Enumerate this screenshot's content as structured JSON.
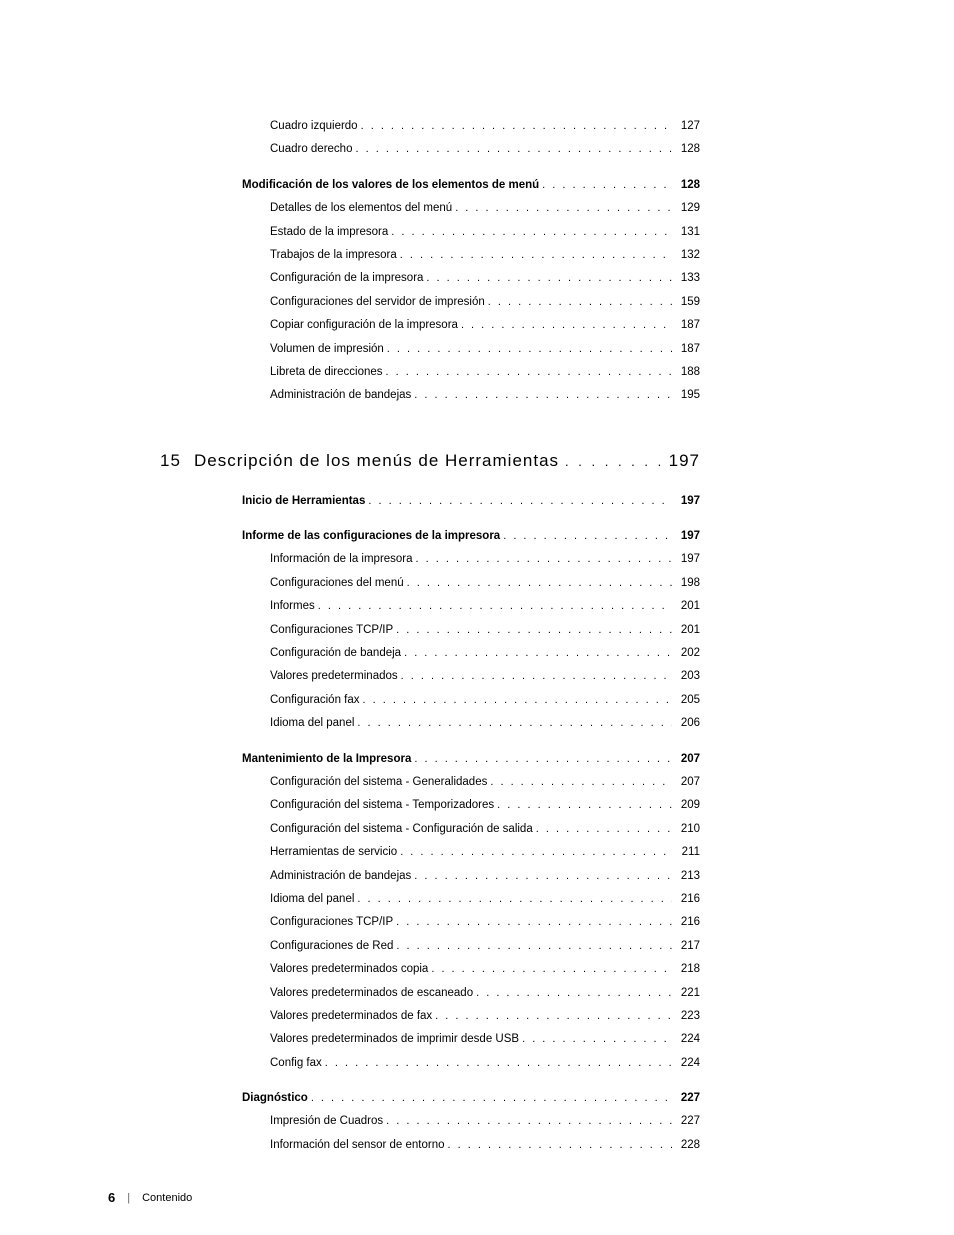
{
  "leader_dots": ".  .  .  .  .  .  .  .  .  .  .  .  .  .  .  .  .  .  .  .  .  .  .  .  .  .  .  .  .  .  .  .  .  .  .  .  .  .  .  .  .  .  .  .  .  .  .  .  .  .  .  .  .  .  .  .  .  .  .  .",
  "chapter_leader": ".  .  .  .  .  .  .  .  .  .  .  .  .  .  .  .  .  .  .  .  .  .  .  .  .  .  .  .  .  .",
  "chapter": {
    "num": "15",
    "title": "Descripción de los menús de Herramientas",
    "page": "197"
  },
  "toc": [
    {
      "label": "Cuadro izquierdo",
      "page": "127",
      "indent": 2,
      "bold": false
    },
    {
      "label": "Cuadro derecho",
      "page": "128",
      "indent": 2,
      "bold": false
    },
    {
      "gap": true
    },
    {
      "label": "Modificación de los valores de los elementos de menú",
      "page": "128",
      "indent": 1,
      "bold": true
    },
    {
      "label": "Detalles de los elementos del menú",
      "page": "129",
      "indent": 2,
      "bold": false
    },
    {
      "label": "Estado de la impresora",
      "page": "131",
      "indent": 2,
      "bold": false
    },
    {
      "label": "Trabajos de la impresora",
      "page": "132",
      "indent": 2,
      "bold": false
    },
    {
      "label": "Configuración de la impresora",
      "page": "133",
      "indent": 2,
      "bold": false
    },
    {
      "label": "Configuraciones del servidor de impresión",
      "page": "159",
      "indent": 2,
      "bold": false
    },
    {
      "label": "Copiar configuración de la impresora",
      "page": "187",
      "indent": 2,
      "bold": false
    },
    {
      "label": "Volumen de impresión",
      "page": "187",
      "indent": 2,
      "bold": false
    },
    {
      "label": "Libreta de direcciones",
      "page": "188",
      "indent": 2,
      "bold": false
    },
    {
      "label": "Administración de bandejas",
      "page": "195",
      "indent": 2,
      "bold": false
    },
    {
      "biggap": true
    },
    {
      "chapter": true
    },
    {
      "gap": true
    },
    {
      "label": "Inicio de Herramientas",
      "page": "197",
      "indent": 1,
      "bold": true
    },
    {
      "gap": true
    },
    {
      "label": "Informe de las configuraciones de la impresora",
      "page": "197",
      "indent": 1,
      "bold": true
    },
    {
      "label": "Información de la impresora",
      "page": "197",
      "indent": 2,
      "bold": false
    },
    {
      "label": "Configuraciones del menú",
      "page": "198",
      "indent": 2,
      "bold": false
    },
    {
      "label": "Informes",
      "page": "201",
      "indent": 2,
      "bold": false
    },
    {
      "label": "Configuraciones TCP/IP",
      "page": "201",
      "indent": 2,
      "bold": false
    },
    {
      "label": "Configuración de bandeja",
      "page": "202",
      "indent": 2,
      "bold": false
    },
    {
      "label": "Valores predeterminados",
      "page": "203",
      "indent": 2,
      "bold": false
    },
    {
      "label": "Configuración fax",
      "page": "205",
      "indent": 2,
      "bold": false
    },
    {
      "label": "Idioma del panel",
      "page": "206",
      "indent": 2,
      "bold": false
    },
    {
      "gap": true
    },
    {
      "label": "Mantenimiento de la Impresora",
      "page": "207",
      "indent": 1,
      "bold": true
    },
    {
      "label": "Configuración del sistema - Generalidades",
      "page": "207",
      "indent": 2,
      "bold": false
    },
    {
      "label": "Configuración del sistema - Temporizadores",
      "page": "209",
      "indent": 2,
      "bold": false
    },
    {
      "label": "Configuración del sistema - Configuración de salida",
      "page": "210",
      "indent": 2,
      "bold": false
    },
    {
      "label": "Herramientas de servicio",
      "page": "211",
      "indent": 2,
      "bold": false
    },
    {
      "label": "Administración de bandejas",
      "page": "213",
      "indent": 2,
      "bold": false
    },
    {
      "label": "Idioma del panel",
      "page": "216",
      "indent": 2,
      "bold": false
    },
    {
      "label": "Configuraciones TCP/IP",
      "page": "216",
      "indent": 2,
      "bold": false
    },
    {
      "label": "Configuraciones de Red",
      "page": "217",
      "indent": 2,
      "bold": false
    },
    {
      "label": "Valores predeterminados copia",
      "page": "218",
      "indent": 2,
      "bold": false
    },
    {
      "label": "Valores predeterminados de escaneado",
      "page": "221",
      "indent": 2,
      "bold": false
    },
    {
      "label": "Valores predeterminados de fax",
      "page": "223",
      "indent": 2,
      "bold": false
    },
    {
      "label": "Valores predeterminados de imprimir desde USB",
      "page": "224",
      "indent": 2,
      "bold": false
    },
    {
      "label": "Config fax",
      "page": "224",
      "indent": 2,
      "bold": false
    },
    {
      "gap": true
    },
    {
      "label": "Diagnóstico",
      "page": "227",
      "indent": 1,
      "bold": true
    },
    {
      "label": "Impresión de Cuadros",
      "page": "227",
      "indent": 2,
      "bold": false
    },
    {
      "label": "Información del sensor de entorno",
      "page": "228",
      "indent": 2,
      "bold": false
    }
  ],
  "footer": {
    "page_num": "6",
    "section": "Contenido"
  }
}
